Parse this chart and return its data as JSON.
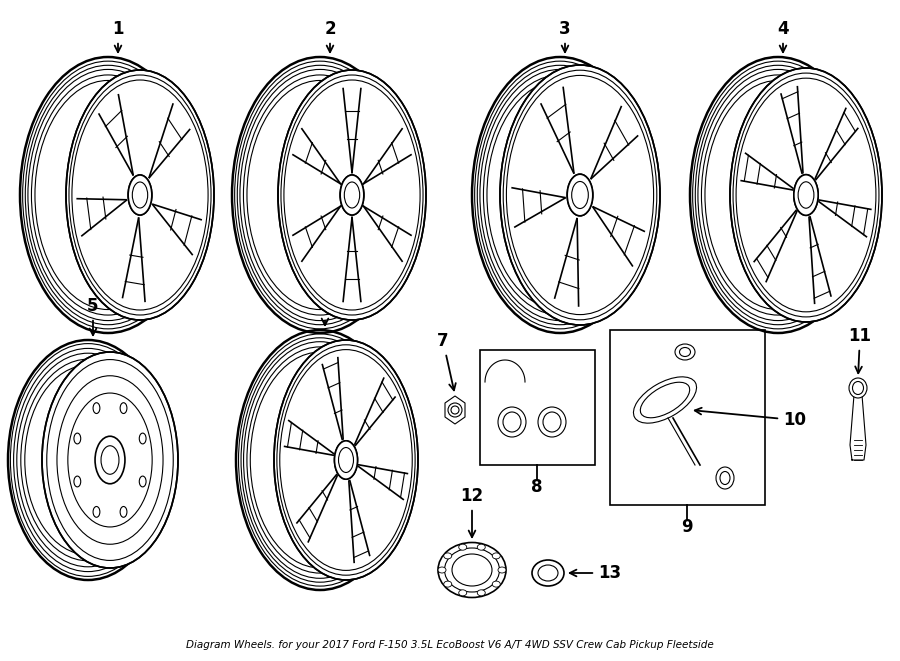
{
  "bg_color": "#ffffff",
  "line_color": "#000000",
  "title": "Diagram Wheels. for your 2017 Ford F-150 3.5L EcoBoost V6 A/T 4WD SSV Crew Cab Pickup Fleetside",
  "figsize": [
    9.0,
    6.61
  ],
  "dpi": 100
}
